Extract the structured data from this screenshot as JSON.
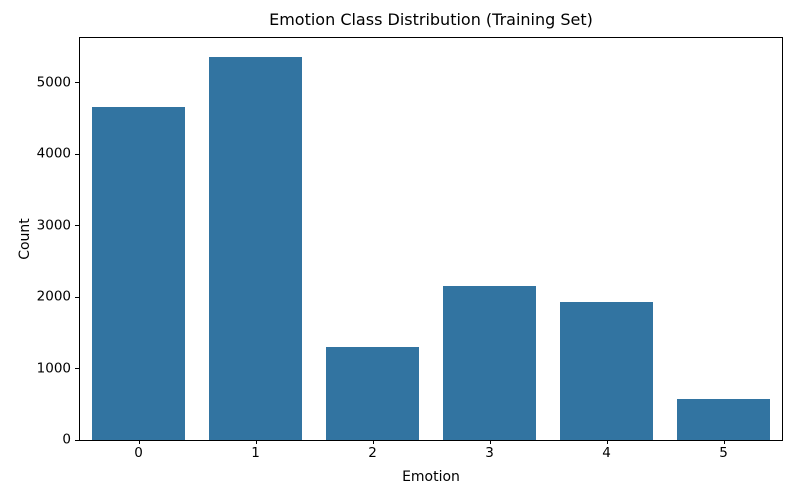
{
  "chart_data": {
    "type": "bar",
    "title": "Emotion Class Distribution (Training Set)",
    "xlabel": "Emotion",
    "ylabel": "Count",
    "categories": [
      "0",
      "1",
      "2",
      "3",
      "4",
      "5"
    ],
    "values": [
      4666,
      5362,
      1304,
      2159,
      1937,
      572
    ],
    "yticks": [
      0,
      1000,
      2000,
      3000,
      4000,
      5000
    ],
    "ylim": [
      0,
      5630
    ],
    "bar_color": "#3274a1",
    "spine_color": "#000000",
    "background_color": "#ffffff",
    "grid": false,
    "legend_position": "none",
    "bar_width_fraction": 0.8
  }
}
